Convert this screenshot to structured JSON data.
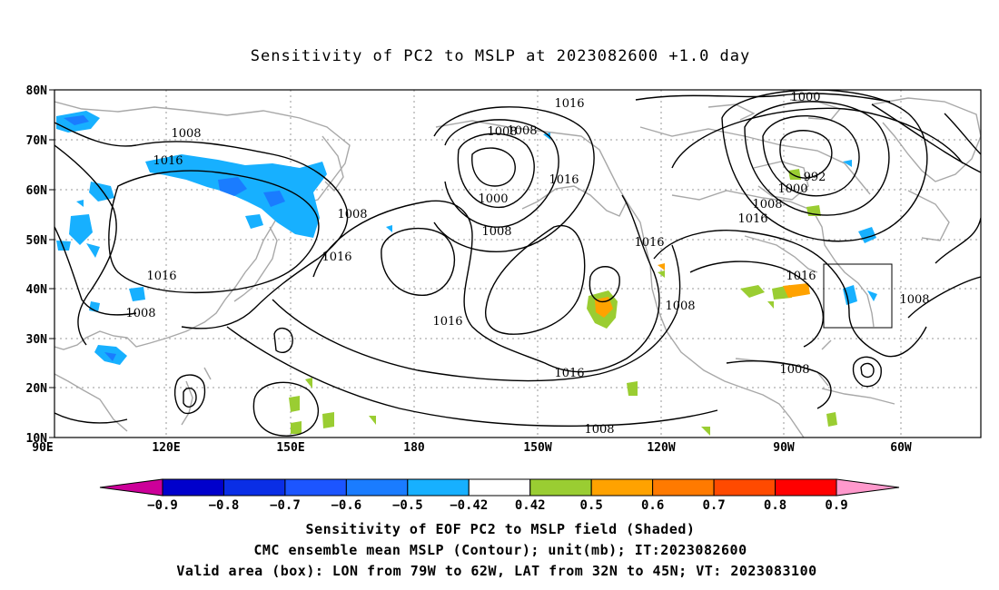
{
  "title": "Sensitivity of PC2 to MSLP at 2023082600 +1.0 day",
  "lat_labels": [
    "80N",
    "70N",
    "60N",
    "50N",
    "40N",
    "30N",
    "20N",
    "10N"
  ],
  "lon_labels": [
    "90E",
    "120E",
    "150E",
    "180",
    "150W",
    "120W",
    "90W",
    "60W"
  ],
  "contour_labels": [
    {
      "text": "1016"
    },
    {
      "text": "1000"
    },
    {
      "text": "1008"
    },
    {
      "text": "1008"
    },
    {
      "text": "992"
    },
    {
      "text": "1000"
    },
    {
      "text": "1008"
    },
    {
      "text": "1016"
    },
    {
      "text": "1016"
    },
    {
      "text": "1008"
    },
    {
      "text": "1000"
    },
    {
      "text": "1008"
    },
    {
      "text": "1016"
    },
    {
      "text": "1008"
    },
    {
      "text": "1016"
    },
    {
      "text": "1008"
    },
    {
      "text": "1016"
    },
    {
      "text": "1016"
    },
    {
      "text": "1008"
    },
    {
      "text": "1016"
    },
    {
      "text": "1016"
    },
    {
      "text": "1008"
    },
    {
      "text": "1016"
    },
    {
      "text": "1008"
    },
    {
      "text": "1008"
    }
  ],
  "colorbar": {
    "labels": [
      "-0.9",
      "-0.8",
      "-0.7",
      "-0.6",
      "-0.5",
      "-0.42",
      "0.42",
      "0.5",
      "0.6",
      "0.7",
      "0.8",
      "0.9"
    ],
    "colors": [
      "#0000cc",
      "#0a2ee6",
      "#1c55ff",
      "#1a7cff",
      "#17b0ff",
      "#ffffff",
      "#9acd32",
      "#ffa200",
      "#ff7a00",
      "#ff4a00",
      "#ff0000"
    ],
    "low_color": "#cc0099",
    "high_color": "#ff99cc"
  },
  "footer": [
    "Sensitivity of EOF PC2 to MSLP field (Shaded)",
    "CMC ensemble mean MSLP (Contour); unit(mb); IT:2023082600",
    "Valid area (box): LON from 79W to 62W, LAT from 32N to 45N; VT: 2023083100"
  ],
  "valid_box": {
    "lon_min": -79,
    "lon_max": -62,
    "lat_min": 32,
    "lat_max": 45
  },
  "colors": {
    "contour": "#000000",
    "coast": "#a8a8a8",
    "grid": "#999999"
  }
}
